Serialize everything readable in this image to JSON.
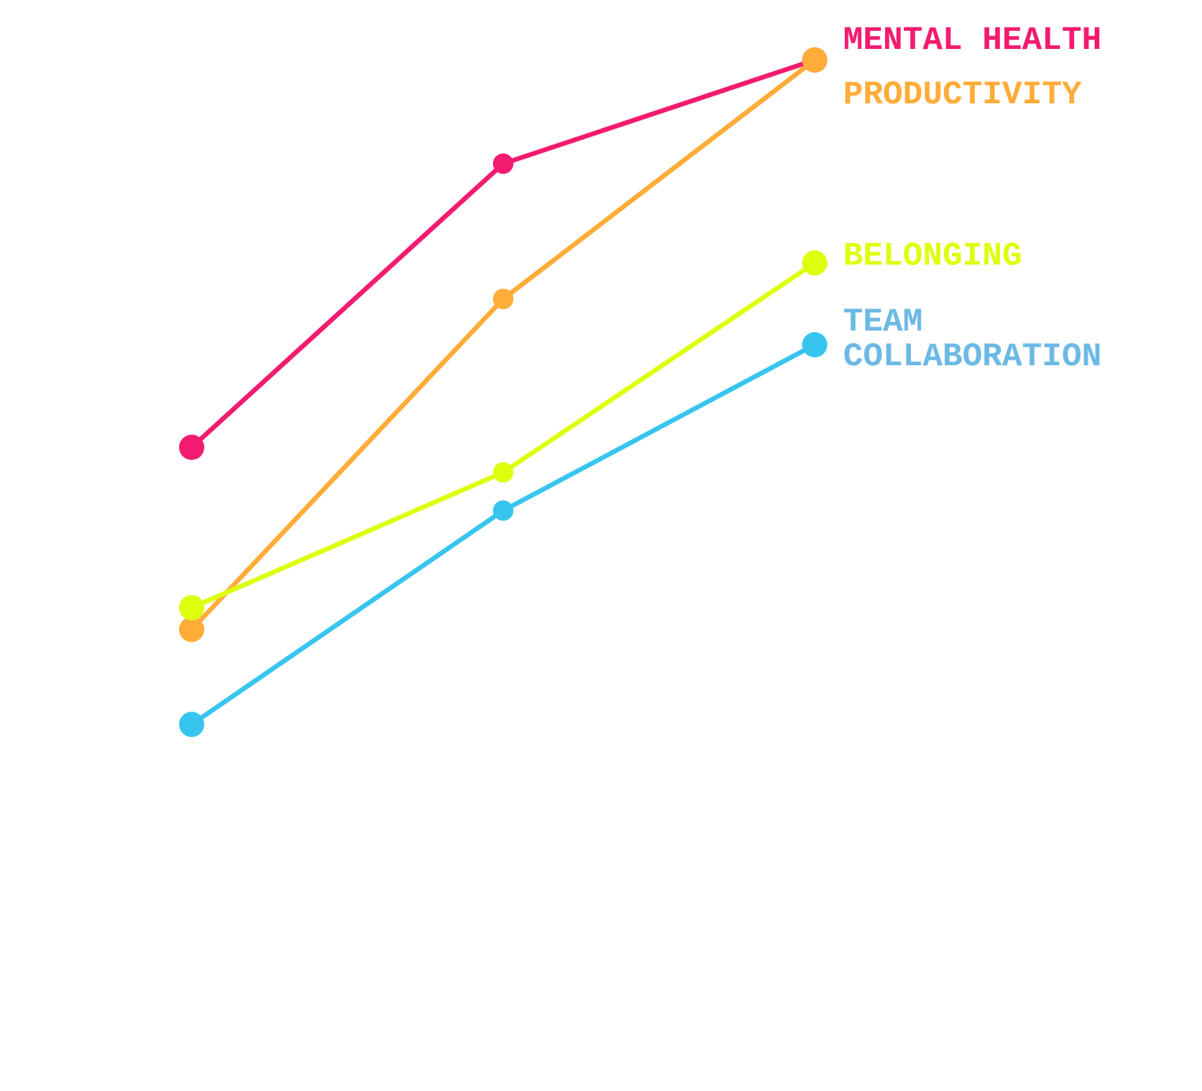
{
  "chart_data": {
    "type": "line",
    "title": "",
    "xlabel": "",
    "ylabel": "",
    "grid": false,
    "legend": "direct labels at right end of lines",
    "x": [
      1,
      2,
      3
    ],
    "ylim": [
      0,
      100
    ],
    "series": [
      {
        "name": "MENTAL HEALTH",
        "label_lines": [
          "MENTAL HEALTH"
        ],
        "color": "#F21B6F",
        "values": [
          59,
          85,
          94.5
        ]
      },
      {
        "name": "PRODUCTIVITY",
        "label_lines": [
          "PRODUCTIVITY"
        ],
        "color": "#FFAC38",
        "values": [
          42.3,
          72.6,
          94.5
        ]
      },
      {
        "name": "BELONGING",
        "label_lines": [
          "BELONGING"
        ],
        "color": "#DDFF0F",
        "values": [
          44.3,
          56.7,
          75.9
        ]
      },
      {
        "name": "TEAM COLLABORATION",
        "label_lines": [
          "TEAM",
          "COLLABORATION"
        ],
        "color": "#37C5EF",
        "label_color": "#6CB9E5",
        "values": [
          33.6,
          53.2,
          68.4
        ]
      }
    ]
  }
}
